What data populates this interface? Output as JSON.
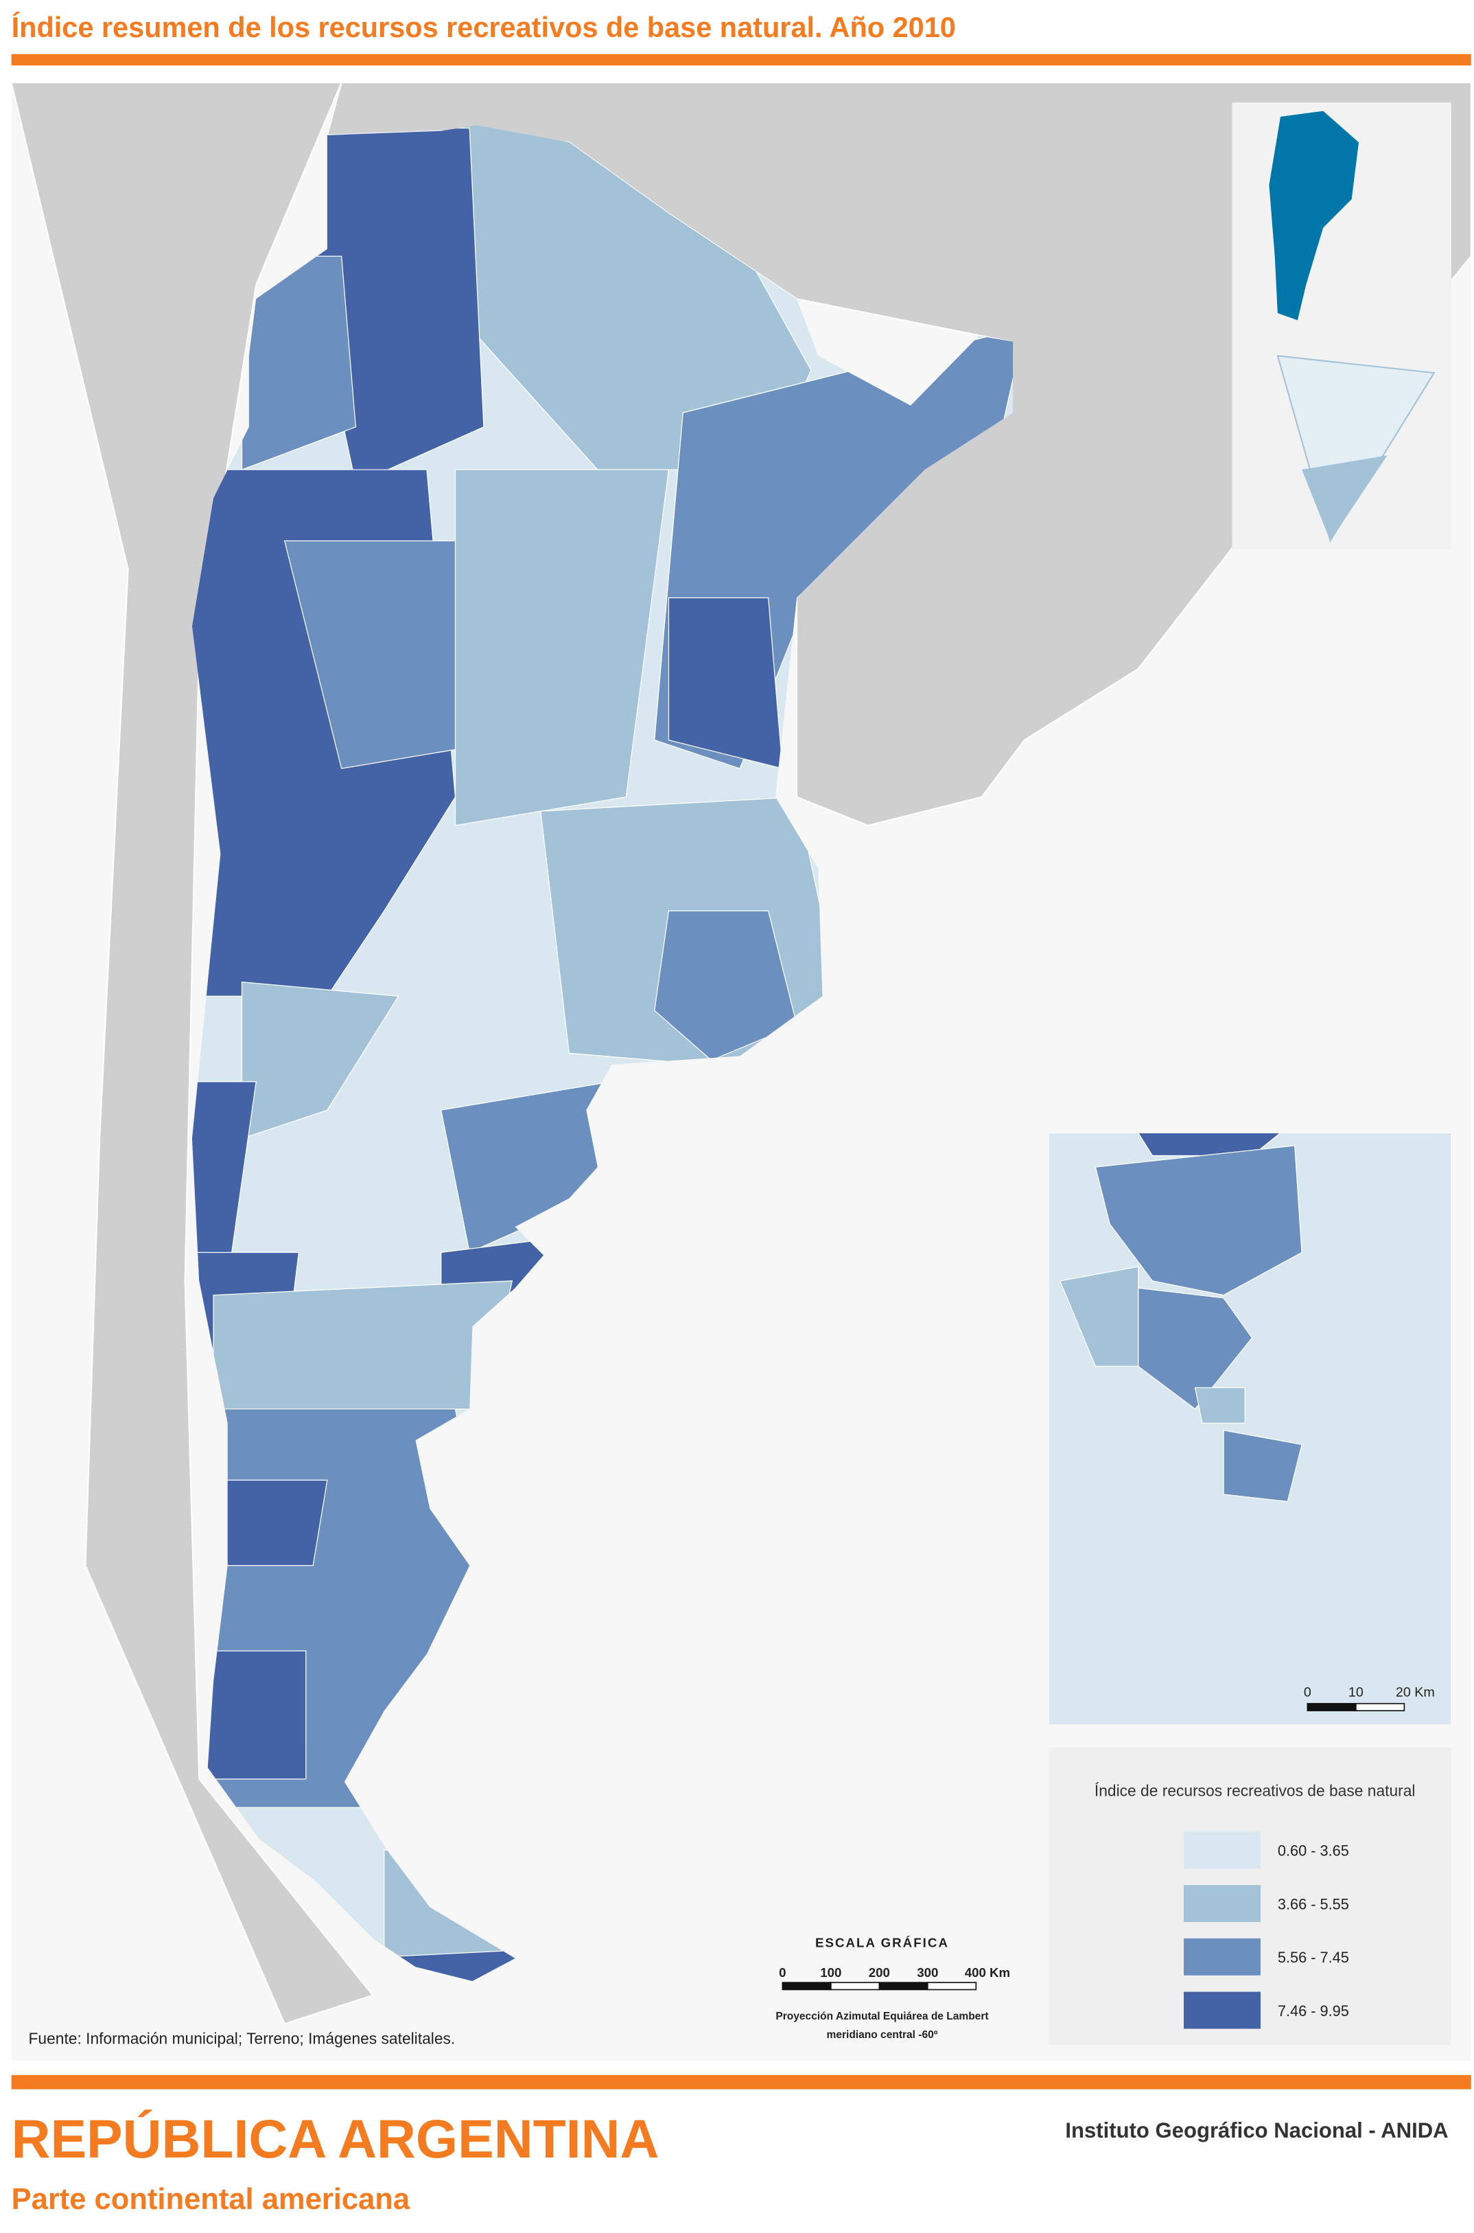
{
  "header": {
    "title": "Índice resumen de los recursos recreativos de base natural. Año 2010"
  },
  "legend": {
    "title": "Índice de recursos recreativos de base natural",
    "items": [
      {
        "label": "0.60 - 3.65",
        "color": "#d9e8f0"
      },
      {
        "label": "3.66 - 5.55",
        "color": "#a3c2d8"
      },
      {
        "label": "5.56 - 7.45",
        "color": "#6b8fbe"
      },
      {
        "label": "7.46 - 9.95",
        "color": "#4463a6"
      }
    ]
  },
  "scale": {
    "title": "ESCALA GRÁFICA",
    "labels": [
      "0",
      "100",
      "200",
      "300",
      "400 Km"
    ],
    "projection": [
      "Proyección Azimutal Equiárea de Lambert",
      "meridiano central -60º"
    ]
  },
  "inset_scale": {
    "labels": [
      "0",
      "10",
      "20 Km"
    ]
  },
  "source": "Fuente: Información municipal; Terreno; Imágenes satelitales.",
  "footer": {
    "title": "REPÚBLICA ARGENTINA",
    "subtitle": "Parte continental americana",
    "institute": "Instituto Geográfico Nacional - ANIDA"
  }
}
